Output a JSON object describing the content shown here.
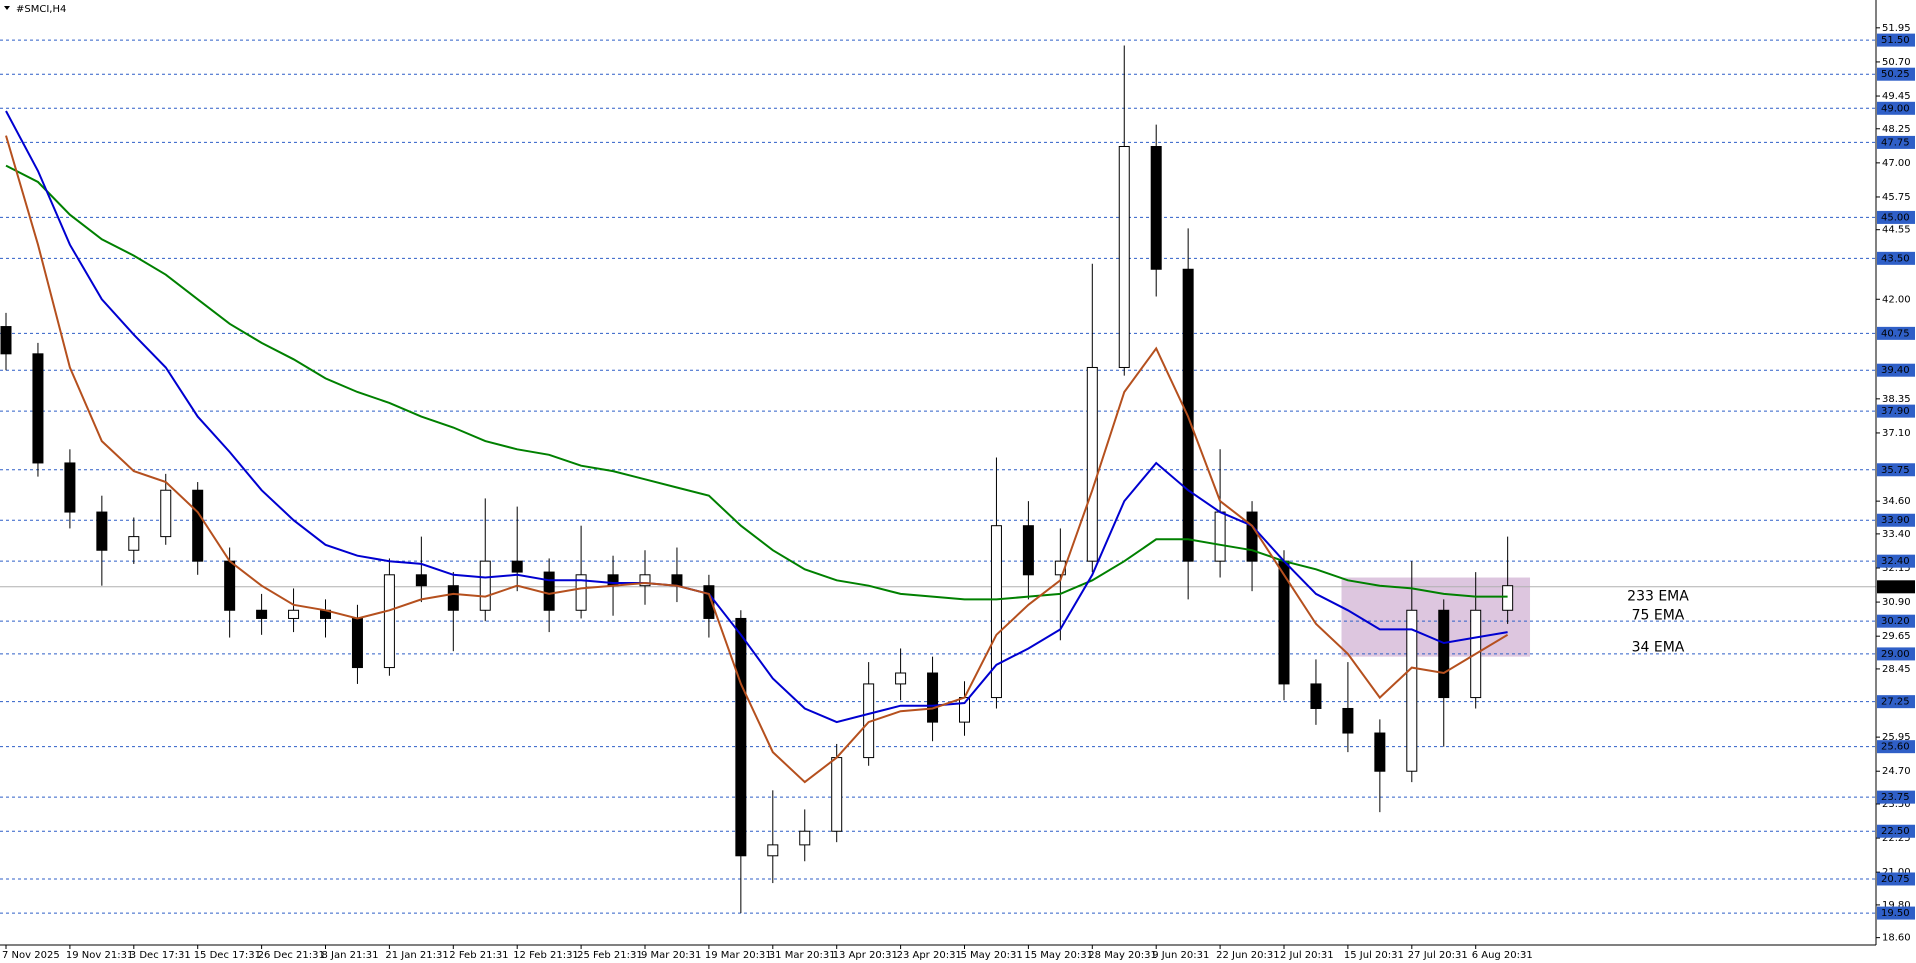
{
  "chart_data": {
    "type": "candlestick",
    "title": "#SMCI,H4",
    "categories": [
      "7 Nov 2025",
      null,
      "19 Nov 21:31",
      null,
      "3 Dec 17:31",
      null,
      "15 Dec 17:31",
      null,
      "26 Dec 21:31",
      null,
      "8 Jan 21:31",
      null,
      "21 Jan 21:31",
      null,
      "2 Feb 21:31",
      null,
      "12 Feb 21:31",
      null,
      "25 Feb 21:31",
      null,
      "9 Mar 20:31",
      null,
      "19 Mar 20:31",
      null,
      "31 Mar 20:31",
      null,
      "13 Apr 20:31",
      null,
      "23 Apr 20:31",
      null,
      "5 May 20:31",
      null,
      "15 May 20:31",
      null,
      "28 May 20:31",
      null,
      "9 Jun 20:31",
      null,
      "22 Jun 20:31",
      null,
      "2 Jul 20:31",
      null,
      "15 Jul 20:31",
      null,
      "27 Jul 20:31",
      null,
      "6 Aug 20:31",
      null
    ],
    "ohlc": {
      "open": [
        41.0,
        40.0,
        36.0,
        34.2,
        32.8,
        33.3,
        35.0,
        32.4,
        30.6,
        30.3,
        30.6,
        30.3,
        28.5,
        31.9,
        31.5,
        30.6,
        32.4,
        32.0,
        30.6,
        31.9,
        31.5,
        31.9,
        31.5,
        30.3,
        21.6,
        22.0,
        22.5,
        25.2,
        27.9,
        28.3,
        26.5,
        27.4,
        33.7,
        31.9,
        32.4,
        39.5,
        47.6,
        43.1,
        32.4,
        34.2,
        32.4,
        27.9,
        27.0,
        26.1,
        24.7,
        30.6,
        27.4,
        30.6
      ],
      "high": [
        41.5,
        40.4,
        36.5,
        34.8,
        34.0,
        35.6,
        35.3,
        32.9,
        31.2,
        31.4,
        31.0,
        30.8,
        32.5,
        33.3,
        32.0,
        34.7,
        34.4,
        32.5,
        33.7,
        32.6,
        32.8,
        32.9,
        31.9,
        30.6,
        24.0,
        23.3,
        25.7,
        28.7,
        29.2,
        28.9,
        28.0,
        36.2,
        34.6,
        33.6,
        43.3,
        51.3,
        48.4,
        44.6,
        36.5,
        34.6,
        32.8,
        28.8,
        28.7,
        26.6,
        32.4,
        31.0,
        32.0,
        33.3
      ],
      "low": [
        39.4,
        35.5,
        33.6,
        31.5,
        32.3,
        33.0,
        31.9,
        29.6,
        29.7,
        29.8,
        29.6,
        27.9,
        28.2,
        30.9,
        29.1,
        30.2,
        31.3,
        29.8,
        30.3,
        30.4,
        30.8,
        30.9,
        29.6,
        19.5,
        20.6,
        21.4,
        22.1,
        24.9,
        27.3,
        25.8,
        26.0,
        27.0,
        31.0,
        29.5,
        32.0,
        39.2,
        42.1,
        31.0,
        31.8,
        31.3,
        27.3,
        26.4,
        25.4,
        23.2,
        24.3,
        25.6,
        27.0,
        30.1
      ],
      "close": [
        40.0,
        36.0,
        34.2,
        32.8,
        33.3,
        35.0,
        32.4,
        30.6,
        30.3,
        30.6,
        30.3,
        28.5,
        31.9,
        31.5,
        30.6,
        32.4,
        32.0,
        30.6,
        31.9,
        31.5,
        31.9,
        31.5,
        30.3,
        21.6,
        22.0,
        22.5,
        25.2,
        27.9,
        28.3,
        26.5,
        27.4,
        33.7,
        31.9,
        32.4,
        39.5,
        47.6,
        43.1,
        32.4,
        34.2,
        32.4,
        27.9,
        27.0,
        26.1,
        24.7,
        30.6,
        27.4,
        30.6,
        31.5
      ]
    },
    "series": [
      {
        "name": "233 EMA",
        "color": "#008000",
        "values": [
          46.9,
          46.3,
          45.1,
          44.2,
          43.6,
          42.9,
          42.0,
          41.1,
          40.4,
          39.8,
          39.1,
          38.6,
          38.2,
          37.7,
          37.3,
          36.8,
          36.5,
          36.3,
          35.9,
          35.7,
          35.4,
          35.1,
          34.8,
          33.7,
          32.8,
          32.1,
          31.7,
          31.5,
          31.2,
          31.1,
          31.0,
          31.0,
          31.1,
          31.2,
          31.7,
          32.4,
          33.2,
          33.2,
          33.0,
          32.8,
          32.4,
          32.1,
          31.7,
          31.5,
          31.4,
          31.2,
          31.1,
          31.1
        ]
      },
      {
        "name": "75 EMA",
        "color": "#0000d0",
        "values": [
          48.9,
          46.7,
          44.0,
          42.0,
          40.7,
          39.5,
          37.7,
          36.4,
          35.0,
          33.9,
          33.0,
          32.6,
          32.4,
          32.3,
          31.9,
          31.8,
          31.9,
          31.7,
          31.7,
          31.6,
          31.6,
          31.5,
          31.2,
          29.7,
          28.1,
          27.0,
          26.5,
          26.8,
          27.1,
          27.1,
          27.2,
          28.6,
          29.2,
          29.9,
          31.9,
          34.6,
          36.0,
          35.0,
          34.2,
          33.7,
          32.4,
          31.2,
          30.6,
          29.9,
          29.9,
          29.4,
          29.6,
          29.8
        ]
      },
      {
        "name": "34 EMA",
        "color": "#b5501e",
        "values": [
          48.0,
          44.0,
          39.5,
          36.8,
          35.7,
          35.3,
          34.2,
          32.4,
          31.5,
          30.8,
          30.6,
          30.3,
          30.6,
          31.0,
          31.2,
          31.1,
          31.5,
          31.2,
          31.4,
          31.5,
          31.6,
          31.5,
          31.2,
          27.9,
          25.4,
          24.3,
          25.2,
          26.5,
          26.9,
          27.0,
          27.4,
          29.7,
          30.8,
          31.7,
          35.0,
          38.6,
          40.2,
          37.7,
          34.6,
          33.7,
          31.9,
          30.1,
          29.0,
          27.4,
          28.5,
          28.3,
          29.0,
          29.7
        ]
      }
    ],
    "ylim": [
      18.33,
      52.97
    ],
    "yticks": [
      51.95,
      {
        "value": 50.7,
        "label": "50.70"
      },
      49.45,
      48.25,
      {
        "value": 47,
        "label": "47.00"
      },
      45.75,
      44.55,
      {
        "value": 42,
        "label": "42.00"
      },
      38.35,
      {
        "value": 37.1,
        "label": "37.10"
      },
      {
        "value": 34.6,
        "label": "34.60"
      },
      {
        "value": 33.4,
        "label": "33.40"
      },
      32.15,
      {
        "value": 30.9,
        "label": "30.90"
      },
      29.65,
      28.45,
      25.95,
      {
        "value": 24.7,
        "label": "24.70"
      },
      {
        "value": 23.5,
        "label": "23.50"
      },
      22.25,
      {
        "value": 21,
        "label": "21.00"
      },
      {
        "value": 19.8,
        "label": "19.80"
      },
      {
        "value": 18.6,
        "label": "18.60"
      }
    ],
    "levels": [
      {
        "value": 51.5,
        "label": "51.50"
      },
      50.25,
      {
        "value": 49,
        "label": "49.00"
      },
      47.75,
      {
        "value": 45,
        "label": "45.00"
      },
      {
        "value": 43.5,
        "label": "43.50"
      },
      40.75,
      {
        "value": 39.4,
        "label": "39.40"
      },
      {
        "value": 37.9,
        "label": "37.90"
      },
      35.75,
      {
        "value": 33.9,
        "label": "33.90"
      },
      {
        "value": 32.4,
        "label": "32.40"
      },
      {
        "value": 30.2,
        "label": "30.20"
      },
      {
        "value": 29,
        "label": "29.00"
      },
      27.25,
      {
        "value": 25.6,
        "label": "25.60"
      },
      23.75,
      {
        "value": 22.5,
        "label": "22.50"
      },
      20.75,
      {
        "value": 19.5,
        "label": "19.50"
      }
    ],
    "level_color": "#2f5fc7",
    "current_price": 31.46,
    "zone": {
      "ylim": [
        28.9,
        31.8
      ],
      "color": "#d7bcd9"
    }
  }
}
